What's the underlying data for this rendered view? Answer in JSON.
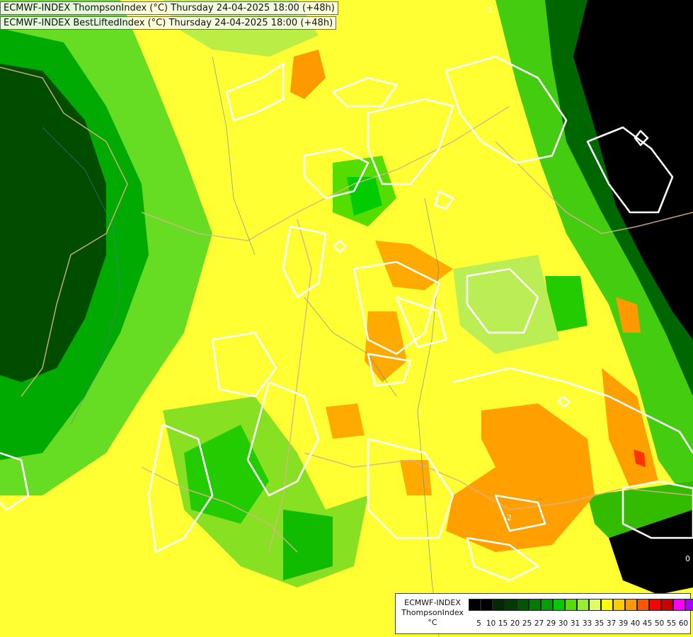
{
  "header": {
    "line1": "ECMWF-INDEX ThompsonIndex (°C) Thursday 24-04-2025 18:00 (+48h)",
    "line2": "ECMWF-INDEX BestLiftedIndex (°C) Thursday 24-04-2025 18:00 (+48h)"
  },
  "map": {
    "field": "ThompsonIndex",
    "contour_field": "BestLiftedIndex",
    "contour_labels": [
      "-2",
      "-2",
      "-2",
      "0"
    ]
  },
  "legend": {
    "model": "ECMWF-INDEX",
    "parameter": "ThompsonIndex",
    "unit": "°C",
    "swatch_colors": [
      "#000000",
      "#000000",
      "#002a00",
      "#003c00",
      "#005500",
      "#007a00",
      "#00a000",
      "#00cc00",
      "#55dd00",
      "#99ee33",
      "#ddff66",
      "#ffff00",
      "#ffcc00",
      "#ff9900",
      "#ff5500",
      "#ff0000",
      "#cc0000",
      "#ff00ff",
      "#aa00ff",
      "#6600ff",
      "#0000ff"
    ],
    "tick_labels": [
      "5",
      "10",
      "15",
      "20",
      "25",
      "27",
      "29",
      "30",
      "31",
      "33",
      "35",
      "37",
      "39",
      "40",
      "45",
      "50",
      "55",
      "60"
    ]
  }
}
